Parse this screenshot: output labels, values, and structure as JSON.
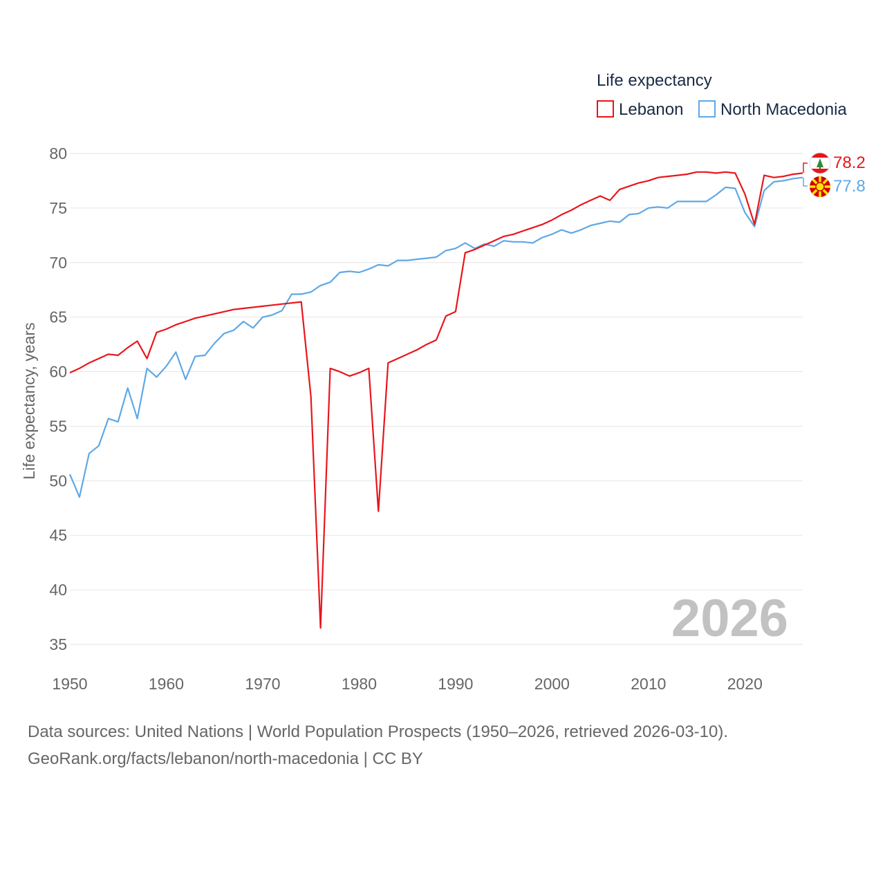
{
  "chart_data": {
    "type": "line",
    "legend_title": "Life expectancy",
    "ylabel": "Life expectancy, years",
    "xlim": [
      1950,
      2026
    ],
    "ylim": [
      35,
      80
    ],
    "x_ticks": [
      1950,
      1960,
      1970,
      1980,
      1990,
      2000,
      2010,
      2020
    ],
    "y_ticks": [
      35,
      40,
      45,
      50,
      55,
      60,
      65,
      70,
      75,
      80
    ],
    "year_watermark": "2026",
    "x": [
      1950,
      1951,
      1952,
      1953,
      1954,
      1955,
      1956,
      1957,
      1958,
      1959,
      1960,
      1961,
      1962,
      1963,
      1964,
      1965,
      1966,
      1967,
      1968,
      1969,
      1970,
      1971,
      1972,
      1973,
      1974,
      1975,
      1976,
      1977,
      1978,
      1979,
      1980,
      1981,
      1982,
      1983,
      1984,
      1985,
      1986,
      1987,
      1988,
      1989,
      1990,
      1991,
      1992,
      1993,
      1994,
      1995,
      1996,
      1997,
      1998,
      1999,
      2000,
      2001,
      2002,
      2003,
      2004,
      2005,
      2006,
      2007,
      2008,
      2009,
      2010,
      2011,
      2012,
      2013,
      2014,
      2015,
      2016,
      2017,
      2018,
      2019,
      2020,
      2021,
      2022,
      2023,
      2024,
      2025,
      2026
    ],
    "series": [
      {
        "name": "Lebanon",
        "color": "#e8151b",
        "end_label": "78.2",
        "values": [
          59.9,
          60.3,
          60.8,
          61.2,
          61.6,
          61.5,
          62.2,
          62.8,
          61.2,
          63.6,
          63.9,
          64.3,
          64.6,
          64.9,
          65.1,
          65.3,
          65.5,
          65.7,
          65.8,
          65.9,
          66.0,
          66.1,
          66.2,
          66.3,
          66.4,
          57.7,
          36.5,
          60.3,
          60.0,
          59.6,
          59.9,
          60.3,
          47.2,
          60.8,
          61.2,
          61.6,
          62.0,
          62.5,
          62.9,
          65.1,
          65.5,
          70.9,
          71.2,
          71.6,
          72.0,
          72.4,
          72.6,
          72.9,
          73.2,
          73.5,
          73.9,
          74.4,
          74.8,
          75.3,
          75.7,
          76.1,
          75.7,
          76.7,
          77.0,
          77.3,
          77.5,
          77.8,
          77.9,
          78.0,
          78.1,
          78.3,
          78.3,
          78.2,
          78.3,
          78.2,
          76.3,
          73.5,
          78.0,
          77.8,
          77.9,
          78.1,
          78.2
        ]
      },
      {
        "name": "North Macedonia",
        "color": "#5ea8e6",
        "end_label": "77.8",
        "values": [
          50.6,
          48.5,
          52.5,
          53.2,
          55.7,
          55.4,
          58.5,
          55.7,
          60.3,
          59.5,
          60.5,
          61.8,
          59.3,
          61.4,
          61.5,
          62.6,
          63.5,
          63.8,
          64.6,
          64.0,
          65.0,
          65.2,
          65.6,
          67.1,
          67.1,
          67.3,
          67.9,
          68.2,
          69.1,
          69.2,
          69.1,
          69.4,
          69.8,
          69.7,
          70.2,
          70.2,
          70.3,
          70.4,
          70.5,
          71.1,
          71.3,
          71.8,
          71.3,
          71.7,
          71.5,
          72.0,
          71.9,
          71.9,
          71.8,
          72.3,
          72.6,
          73.0,
          72.7,
          73.0,
          73.4,
          73.6,
          73.8,
          73.7,
          74.4,
          74.5,
          75.0,
          75.1,
          75.0,
          75.6,
          75.6,
          75.6,
          75.6,
          76.2,
          76.9,
          76.8,
          74.6,
          73.3,
          76.6,
          77.4,
          77.5,
          77.7,
          77.8
        ]
      }
    ]
  },
  "footer": {
    "line1": "Data sources: United Nations | World Population Prospects (1950–2026, retrieved 2026-03-10).",
    "line2": "GeoRank.org/facts/lebanon/north-macedonia | CC BY"
  }
}
